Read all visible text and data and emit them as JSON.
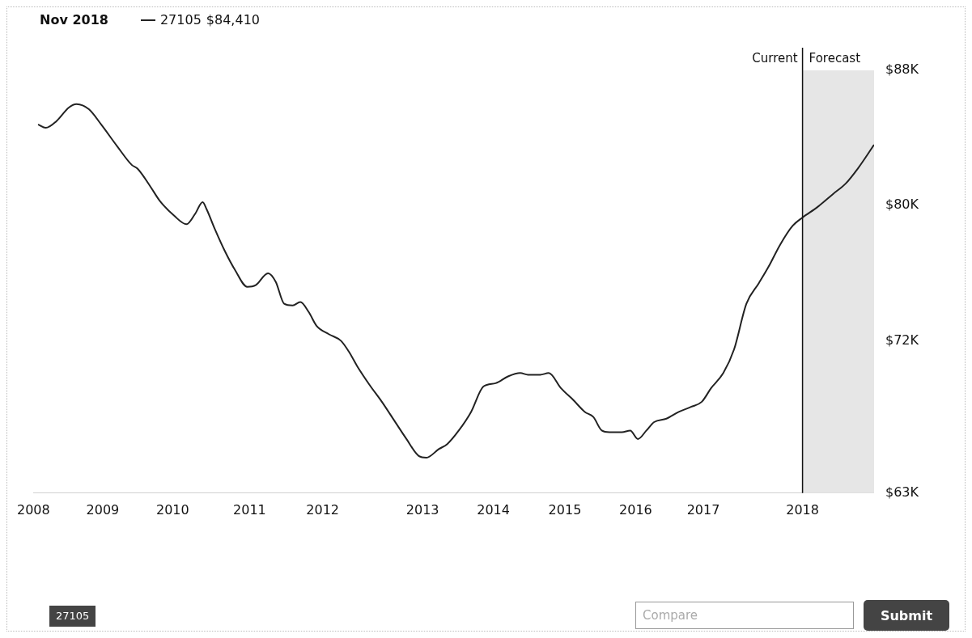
{
  "chart_data": {
    "type": "line",
    "title": "Nov 2018",
    "legend": "top left",
    "grid": false,
    "marker": "none",
    "line_style": "solid",
    "x": [
      2008.06,
      2008.16,
      2008.3,
      2008.46,
      2008.56,
      2008.72,
      2008.88,
      2009.09,
      2009.28,
      2009.35,
      2009.51,
      2009.64,
      2009.83,
      2009.99,
      2010.1,
      2010.2,
      2010.25,
      2010.36,
      2010.49,
      2010.62,
      2010.78,
      2010.89,
      2011.05,
      2011.15,
      2011.26,
      2011.37,
      2011.47,
      2011.58,
      2011.68,
      2011.84,
      2012.0,
      2012.11,
      2012.21,
      2012.37,
      2012.53,
      2012.69,
      2012.85,
      2013.01,
      2013.11,
      2013.27,
      2013.38,
      2013.53,
      2013.69,
      2013.85,
      2014.01,
      2014.17,
      2014.33,
      2014.43,
      2014.59,
      2014.7,
      2014.86,
      2015.02,
      2015.17,
      2015.28,
      2015.39,
      2015.49,
      2015.65,
      2015.76,
      2015.86,
      2015.97,
      2016.07,
      2016.23,
      2016.39,
      2016.55,
      2016.69,
      2016.81,
      2016.97,
      2017.11,
      2017.27,
      2017.43,
      2017.56,
      2017.71,
      2017.87,
      2018.0,
      2018.19,
      2018.4,
      2018.56,
      2018.72,
      2018.93
    ],
    "series": [
      {
        "name": "27105",
        "color": "#222222",
        "values": [
          84.8,
          84.6,
          85.0,
          85.8,
          86.0,
          85.7,
          84.8,
          83.5,
          82.4,
          82.2,
          81.2,
          80.3,
          79.4,
          78.9,
          79.5,
          80.2,
          79.8,
          78.6,
          77.3,
          76.2,
          75.2,
          75.3,
          76.0,
          75.5,
          74.2,
          74.1,
          74.3,
          73.7,
          72.9,
          72.4,
          72.0,
          71.3,
          70.5,
          69.4,
          68.4,
          67.3,
          66.2,
          65.2,
          65.1,
          65.6,
          65.9,
          66.7,
          67.8,
          69.3,
          69.5,
          69.9,
          70.1,
          70.0,
          70.0,
          70.1,
          69.2,
          68.5,
          67.8,
          67.5,
          66.7,
          66.6,
          66.6,
          66.7,
          66.2,
          66.7,
          67.2,
          67.4,
          67.8,
          68.1,
          68.4,
          69.2,
          70.1,
          71.5,
          74.2,
          75.4,
          76.4,
          77.7,
          78.8,
          79.3,
          79.9,
          80.7,
          81.3,
          82.2,
          83.6
        ]
      }
    ],
    "xticks": [
      {
        "value": 2008,
        "label": "2008"
      },
      {
        "value": 2008.9,
        "label": "2009"
      },
      {
        "value": 2009.81,
        "label": "2010"
      },
      {
        "value": 2010.81,
        "label": "2011"
      },
      {
        "value": 2011.76,
        "label": "2012"
      },
      {
        "value": 2013.06,
        "label": "2013"
      },
      {
        "value": 2013.98,
        "label": "2014"
      },
      {
        "value": 2014.91,
        "label": "2015"
      },
      {
        "value": 2015.83,
        "label": "2016"
      },
      {
        "value": 2016.71,
        "label": "2017"
      },
      {
        "value": 2018,
        "label": "2018"
      }
    ],
    "xlim": [
      2008,
      2018.93
    ],
    "ylim": [
      63,
      88
    ],
    "yticks": [
      {
        "value": 63,
        "label": "$63K"
      },
      {
        "value": 72,
        "label": "$72K"
      },
      {
        "value": 80,
        "label": "$80K"
      },
      {
        "value": 88,
        "label": "$88K"
      }
    ],
    "ref_lines": [
      {
        "axis": "x",
        "value": 2018,
        "label": "Current",
        "color": "#111111"
      }
    ],
    "bands": [
      {
        "axis": "x",
        "from": 2018,
        "to": 2018.93,
        "label": "Forecast",
        "color": "#e6e6e6"
      }
    ],
    "annotations": [
      "$84,410",
      "Compare",
      "Submit"
    ]
  }
}
